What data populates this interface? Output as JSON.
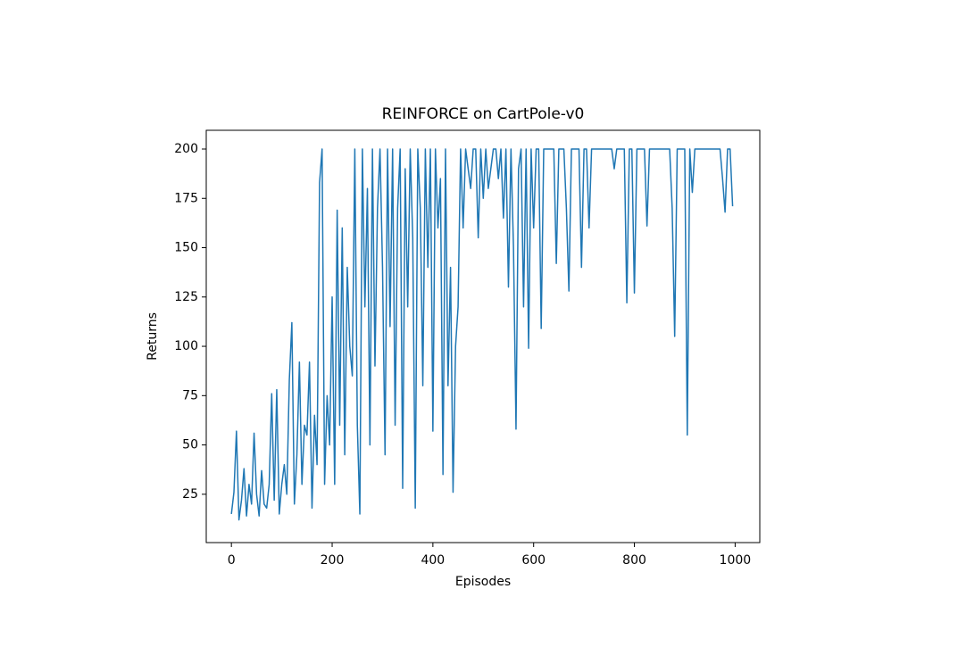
{
  "chart_data": {
    "type": "line",
    "title": "REINFORCE on CartPole-v0",
    "xlabel": "Episodes",
    "ylabel": "Returns",
    "x": [
      0,
      5,
      10,
      15,
      20,
      25,
      30,
      35,
      40,
      45,
      50,
      55,
      60,
      65,
      70,
      75,
      80,
      85,
      90,
      95,
      100,
      105,
      110,
      115,
      120,
      125,
      130,
      135,
      140,
      145,
      150,
      155,
      160,
      165,
      170,
      175,
      180,
      185,
      190,
      195,
      200,
      205,
      210,
      215,
      220,
      225,
      230,
      235,
      240,
      245,
      250,
      255,
      260,
      265,
      270,
      275,
      280,
      285,
      290,
      295,
      300,
      305,
      310,
      315,
      320,
      325,
      330,
      335,
      340,
      345,
      350,
      355,
      360,
      365,
      370,
      375,
      380,
      385,
      390,
      395,
      400,
      405,
      410,
      415,
      420,
      425,
      430,
      435,
      440,
      445,
      450,
      455,
      460,
      465,
      470,
      475,
      480,
      485,
      490,
      495,
      500,
      505,
      510,
      515,
      520,
      525,
      530,
      535,
      540,
      545,
      550,
      555,
      560,
      565,
      570,
      575,
      580,
      585,
      590,
      595,
      600,
      605,
      610,
      615,
      620,
      625,
      630,
      635,
      640,
      645,
      650,
      655,
      660,
      665,
      670,
      675,
      680,
      685,
      690,
      695,
      700,
      705,
      710,
      715,
      720,
      725,
      730,
      735,
      740,
      745,
      750,
      755,
      760,
      765,
      770,
      775,
      780,
      785,
      790,
      795,
      800,
      805,
      810,
      815,
      820,
      825,
      830,
      835,
      840,
      845,
      850,
      855,
      860,
      865,
      870,
      875,
      880,
      885,
      890,
      895,
      900,
      905,
      910,
      915,
      920,
      925,
      930,
      935,
      940,
      945,
      950,
      955,
      960,
      965,
      970,
      975,
      980,
      985,
      990,
      995
    ],
    "series": [
      {
        "name": "Returns",
        "color": "#1f77b4",
        "values": [
          15,
          26,
          57,
          12,
          22,
          38,
          14,
          30,
          20,
          56,
          25,
          14,
          37,
          20,
          18,
          30,
          76,
          22,
          78,
          15,
          30,
          40,
          25,
          83,
          112,
          20,
          45,
          92,
          30,
          60,
          55,
          92,
          18,
          65,
          40,
          183,
          200,
          30,
          75,
          50,
          125,
          30,
          169,
          60,
          160,
          45,
          140,
          100,
          85,
          200,
          60,
          15,
          200,
          120,
          180,
          50,
          200,
          90,
          170,
          200,
          140,
          45,
          200,
          110,
          200,
          60,
          170,
          200,
          28,
          190,
          120,
          200,
          155,
          18,
          200,
          170,
          80,
          200,
          140,
          200,
          57,
          200,
          160,
          185,
          35,
          200,
          80,
          140,
          26,
          100,
          120,
          200,
          160,
          200,
          190,
          180,
          200,
          200,
          155,
          200,
          175,
          200,
          180,
          190,
          200,
          200,
          185,
          200,
          165,
          200,
          130,
          200,
          150,
          58,
          190,
          200,
          120,
          200,
          99,
          200,
          160,
          200,
          200,
          109,
          200,
          200,
          200,
          200,
          200,
          142,
          200,
          200,
          200,
          170,
          128,
          200,
          200,
          200,
          200,
          140,
          200,
          200,
          160,
          200,
          200,
          200,
          200,
          200,
          200,
          200,
          200,
          200,
          190,
          200,
          200,
          200,
          200,
          122,
          200,
          200,
          127,
          200,
          200,
          200,
          200,
          161,
          200,
          200,
          200,
          200,
          200,
          200,
          200,
          200,
          200,
          170,
          105,
          200,
          200,
          200,
          200,
          55,
          200,
          178,
          200,
          200,
          200,
          200,
          200,
          200,
          200,
          200,
          200,
          200,
          200,
          185,
          168,
          200,
          200,
          171
        ]
      }
    ],
    "xlim": [
      -49.95,
      1048.95
    ],
    "ylim": [
      0.5,
      209.5
    ],
    "xticks": [
      0,
      200,
      400,
      600,
      800,
      1000
    ],
    "yticks": [
      25,
      50,
      75,
      100,
      125,
      150,
      175,
      200
    ]
  }
}
